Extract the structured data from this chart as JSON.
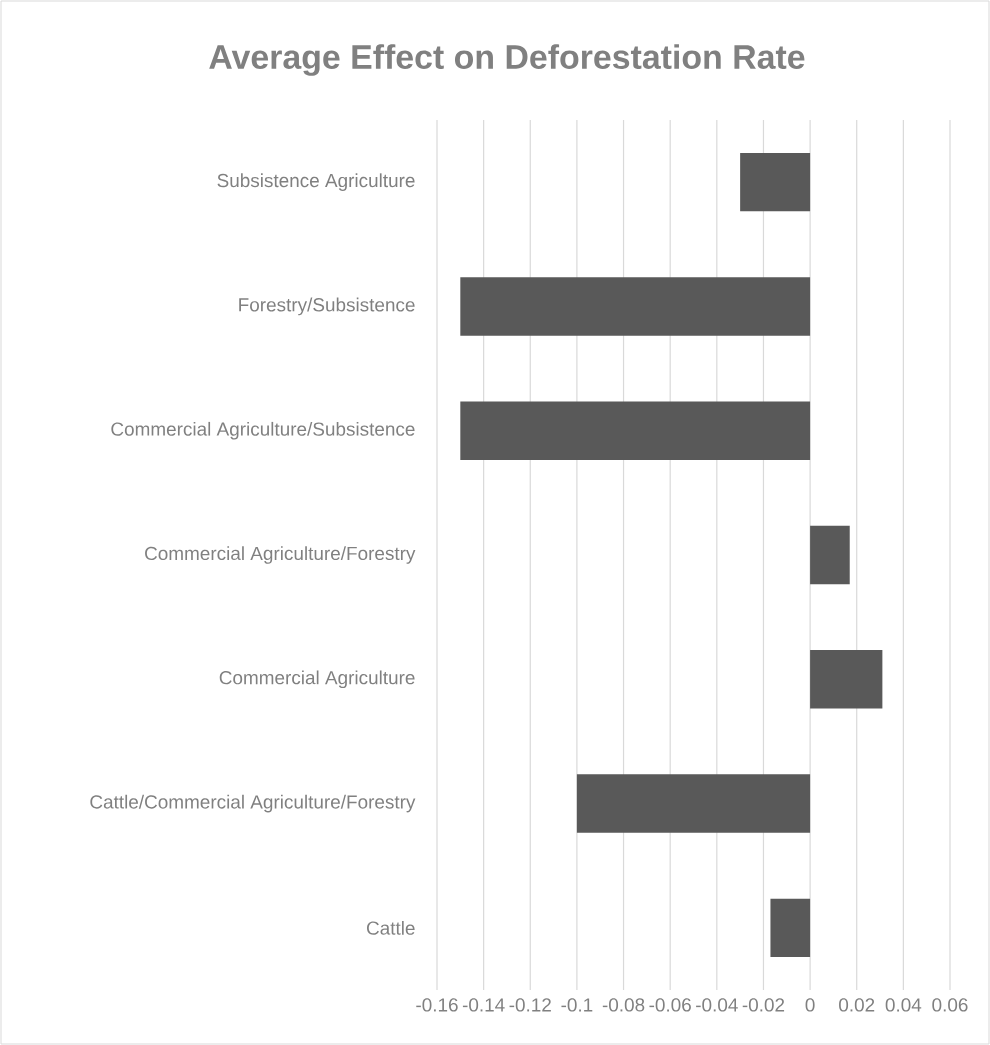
{
  "chart_data": {
    "type": "bar",
    "orientation": "horizontal",
    "title": "Average Effect on Deforestation Rate",
    "categories": [
      "Subsistence Agriculture",
      "Forestry/Subsistence",
      "Commercial Agriculture/Subsistence",
      "Commercial Agriculture/Forestry",
      "Commercial Agriculture",
      "Cattle/Commercial Agriculture/Forestry",
      "Cattle"
    ],
    "values": [
      -0.03,
      -0.15,
      -0.15,
      0.017,
      0.031,
      -0.1,
      -0.017
    ],
    "color": "#595959",
    "xlim": [
      -0.16,
      0.06
    ],
    "xticks": [
      -0.16,
      -0.14,
      -0.12,
      -0.1,
      -0.08,
      -0.06,
      -0.04,
      -0.02,
      0,
      0.02,
      0.04,
      0.06
    ],
    "grid": "x"
  }
}
